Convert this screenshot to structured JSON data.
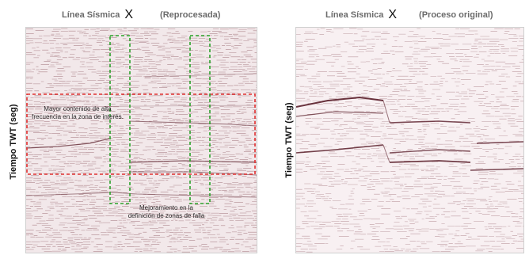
{
  "left_title": {
    "label": "Línea Sísmica",
    "x": "X",
    "tag": "(Reprocesada)"
  },
  "right_title": {
    "label": "Línea Sísmica",
    "x": "X",
    "tag": "(Proceso original)"
  },
  "left_ylabel": "Tiempo TWT (seg)",
  "right_ylabel": "Tiempo TWT (seg)",
  "annotations": {
    "zone_lines": [
      "Mayor contenido de alta",
      "frecuencia en la zona de interés."
    ],
    "fault_lines": [
      "Mejoramiento en la",
      "definición de zonas de falla"
    ]
  },
  "colors": {
    "seismic_trace": "#7a3a44",
    "reflector": "#5a1e2a",
    "zone_box": "#e03030",
    "fault_box": "#2aa22a"
  }
}
